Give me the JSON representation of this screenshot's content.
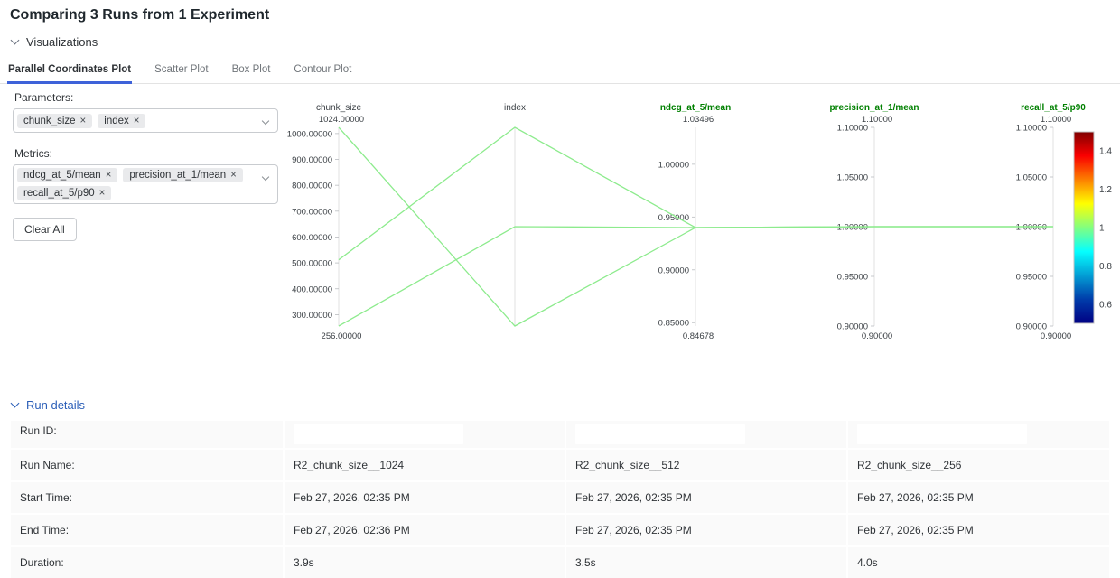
{
  "header": {
    "title": "Comparing 3 Runs from 1 Experiment"
  },
  "visualizations": {
    "section_label": "Visualizations"
  },
  "tabs": [
    {
      "label": "Parallel Coordinates Plot",
      "active": true
    },
    {
      "label": "Scatter Plot",
      "active": false
    },
    {
      "label": "Box Plot",
      "active": false
    },
    {
      "label": "Contour Plot",
      "active": false
    }
  ],
  "controls": {
    "parameters_label": "Parameters:",
    "metrics_label": "Metrics:",
    "parameter_tags": [
      "chunk_size",
      "index"
    ],
    "metric_tags": [
      "ndcg_at_5/mean",
      "precision_at_1/mean",
      "recall_at_5/p90"
    ],
    "remove_glyph": "×",
    "clear_all_label": "Clear All"
  },
  "colors": {
    "accent_blue": "#3e62d9",
    "run_details_blue": "#2c5fb8",
    "metric_green": "#008000",
    "line_green": "#8deb8d",
    "axis_gray": "#e2e2e2",
    "tick_text": "#3b4045"
  },
  "chart_data": {
    "type": "parallel_coordinates",
    "axes": [
      {
        "title": "chunk_size",
        "metric": false,
        "kind": "value",
        "min": 256,
        "max": 1024,
        "range_top_label": "1024.00000",
        "range_bottom_label": "256.00000",
        "ticks": [
          {
            "label": "1000.00000",
            "value": 1000
          },
          {
            "label": "900.00000",
            "value": 900
          },
          {
            "label": "800.00000",
            "value": 800
          },
          {
            "label": "700.00000",
            "value": 700
          },
          {
            "label": "600.00000",
            "value": 600
          },
          {
            "label": "500.00000",
            "value": 500
          },
          {
            "label": "400.00000",
            "value": 400
          },
          {
            "label": "300.00000",
            "value": 300
          }
        ]
      },
      {
        "title": "index",
        "metric": false,
        "kind": "frac",
        "min": 0,
        "max": 1,
        "range_top_label": "",
        "range_bottom_label": "",
        "ticks": []
      },
      {
        "title": "ndcg_at_5/mean",
        "metric": true,
        "kind": "value",
        "min": 0.84678,
        "max": 1.03496,
        "range_top_label": "1.03496",
        "range_bottom_label": "0.84678",
        "ticks": [
          {
            "label": "1.00000",
            "value": 1.0
          },
          {
            "label": "0.95000",
            "value": 0.95
          },
          {
            "label": "0.90000",
            "value": 0.9
          },
          {
            "label": "0.85000",
            "value": 0.85
          }
        ]
      },
      {
        "title": "precision_at_1/mean",
        "metric": true,
        "kind": "value",
        "min": 0.9,
        "max": 1.1,
        "range_top_label": "1.10000",
        "range_bottom_label": "0.90000",
        "ticks": [
          {
            "label": "1.10000",
            "value": 1.1
          },
          {
            "label": "1.05000",
            "value": 1.05
          },
          {
            "label": "1.00000",
            "value": 1.0
          },
          {
            "label": "0.95000",
            "value": 0.95
          },
          {
            "label": "0.90000",
            "value": 0.9
          }
        ]
      },
      {
        "title": "recall_at_5/p90",
        "metric": true,
        "kind": "value",
        "min": 0.9,
        "max": 1.1,
        "range_top_label": "1.10000",
        "range_bottom_label": "0.90000",
        "ticks": [
          {
            "label": "1.10000",
            "value": 1.1
          },
          {
            "label": "1.05000",
            "value": 1.05
          },
          {
            "label": "1.00000",
            "value": 1.0
          },
          {
            "label": "0.95000",
            "value": 0.95
          },
          {
            "label": "0.90000",
            "value": 0.9
          }
        ]
      }
    ],
    "runs": [
      {
        "name": "R2_chunk_size__1024",
        "points": [
          1024,
          0.0,
          0.94,
          1.0,
          1.0
        ]
      },
      {
        "name": "R2_chunk_size__512",
        "points": [
          512,
          1.0,
          0.94,
          1.0,
          1.0
        ]
      },
      {
        "name": "R2_chunk_size__256",
        "points": [
          256,
          0.5,
          0.94,
          1.0,
          1.0
        ]
      }
    ],
    "colorbar": {
      "min": 0.5,
      "max": 1.5,
      "tick_labels": [
        "1.4",
        "1.2",
        "1",
        "0.8",
        "0.6"
      ],
      "tick_values": [
        1.4,
        1.2,
        1.0,
        0.8,
        0.6
      ],
      "gradient_top_to_bottom": [
        "#800000",
        "#fa0000",
        "#ffff00",
        "#05ffff",
        "#003caa",
        "#000083"
      ],
      "gradient_positions": [
        0,
        0.125,
        0.375,
        0.625,
        0.875,
        1
      ]
    }
  },
  "run_details": {
    "section_label": "Run details",
    "rows": [
      {
        "label": "Run ID:",
        "values": [
          "",
          "",
          ""
        ],
        "redacted": true
      },
      {
        "label": "Run Name:",
        "values": [
          "R2_chunk_size__1024",
          "R2_chunk_size__512",
          "R2_chunk_size__256"
        ]
      },
      {
        "label": "Start Time:",
        "values": [
          "Feb 27, 2026, 02:35 PM",
          "Feb 27, 2026, 02:35 PM",
          "Feb 27, 2026, 02:35 PM"
        ]
      },
      {
        "label": "End Time:",
        "values": [
          "Feb 27, 2026, 02:36 PM",
          "Feb 27, 2026, 02:35 PM",
          "Feb 27, 2026, 02:35 PM"
        ]
      },
      {
        "label": "Duration:",
        "values": [
          "3.9s",
          "3.5s",
          "4.0s"
        ]
      }
    ]
  }
}
